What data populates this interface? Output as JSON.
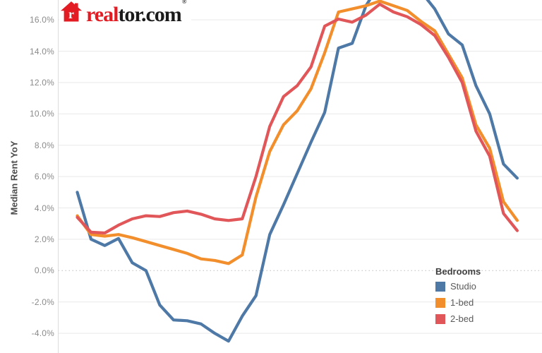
{
  "logo": {
    "text_red": "real",
    "text_dark": "tor.com",
    "registered": "®",
    "icon": "realtor-house-icon",
    "brand_red": "#e31b23"
  },
  "legend": {
    "title": "Bedrooms",
    "items": [
      {
        "label": "Studio",
        "color": "#4e79a7"
      },
      {
        "label": "1-bed",
        "color": "#f28e2b"
      },
      {
        "label": "2-bed",
        "color": "#e15759"
      }
    ]
  },
  "chart_data": {
    "type": "line",
    "ylabel": "Median Rent YoY",
    "x_unit": "months (x-axis tick labels cropped out of view)",
    "x": [
      0,
      1,
      2,
      3,
      4,
      5,
      6,
      7,
      8,
      9,
      10,
      11,
      12,
      13,
      14,
      15,
      16,
      17,
      18,
      19,
      20,
      21,
      22,
      23,
      24,
      25,
      26,
      27,
      28,
      29,
      30,
      31,
      32
    ],
    "y_ticks": [
      {
        "value": 16,
        "label": "16.0%"
      },
      {
        "value": 14,
        "label": "14.0%"
      },
      {
        "value": 12,
        "label": "12.0%"
      },
      {
        "value": 10,
        "label": "10.0%"
      },
      {
        "value": 8,
        "label": "8.0%"
      },
      {
        "value": 6,
        "label": "6.0%"
      },
      {
        "value": 4,
        "label": "4.0%"
      },
      {
        "value": 2,
        "label": "2.0%"
      },
      {
        "value": 0,
        "label": "0.0%"
      },
      {
        "value": -2,
        "label": "-2.0%"
      },
      {
        "value": -4,
        "label": "-4.0%"
      }
    ],
    "ylim_visible": [
      -4.7,
      17.3
    ],
    "grid": "horizontal gridlines every 2%; 0% line dotted; light vertical axis line at left",
    "series": [
      {
        "name": "Studio",
        "color": "#4e79a7",
        "values": [
          5.0,
          2.0,
          1.6,
          2.05,
          0.5,
          0.0,
          -2.2,
          -3.15,
          -3.2,
          -3.4,
          -4.0,
          -4.5,
          -2.9,
          -1.6,
          2.3,
          4.2,
          6.2,
          8.2,
          10.1,
          14.2,
          14.5,
          16.9,
          18.3,
          18.6,
          18.4,
          17.8,
          16.7,
          15.1,
          14.4,
          11.8,
          10.0,
          6.8,
          5.9
        ]
      },
      {
        "name": "1-bed",
        "color": "#f28e2b",
        "values": [
          3.5,
          2.3,
          2.2,
          2.3,
          2.1,
          1.85,
          1.6,
          1.35,
          1.1,
          0.75,
          0.65,
          0.45,
          1.0,
          4.7,
          7.6,
          9.3,
          10.2,
          11.6,
          13.9,
          16.5,
          16.7,
          16.9,
          17.2,
          16.9,
          16.6,
          15.9,
          15.3,
          13.8,
          12.3,
          9.3,
          7.8,
          4.4,
          3.2
        ]
      },
      {
        "name": "2-bed",
        "color": "#e15759",
        "values": [
          3.4,
          2.45,
          2.4,
          2.9,
          3.3,
          3.5,
          3.45,
          3.7,
          3.8,
          3.6,
          3.3,
          3.2,
          3.3,
          6.0,
          9.2,
          11.1,
          11.8,
          13.0,
          15.6,
          16.05,
          15.85,
          16.3,
          17.0,
          16.5,
          16.2,
          15.7,
          15.0,
          13.6,
          12.0,
          8.9,
          7.3,
          3.65,
          2.55
        ]
      }
    ],
    "legend_position": "inside lower right"
  }
}
